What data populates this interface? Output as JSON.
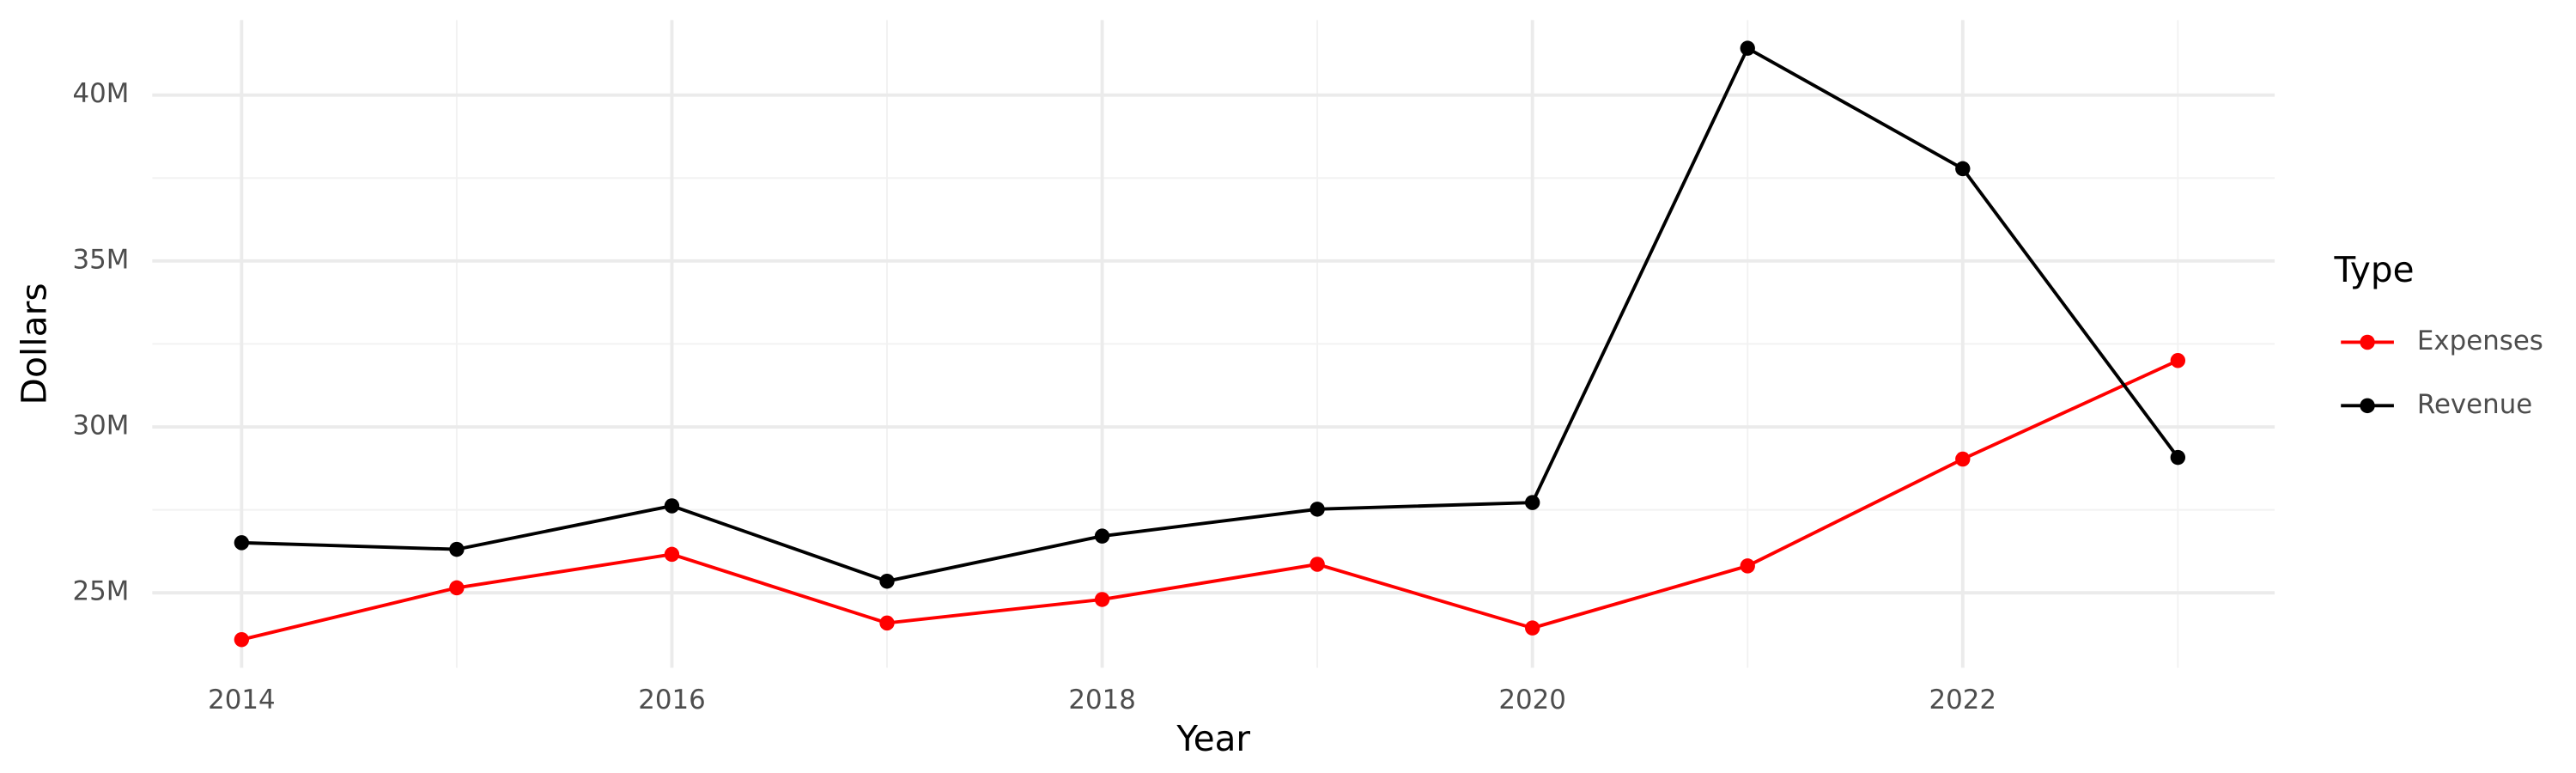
{
  "chart_data": {
    "type": "line",
    "x_label": "Year",
    "y_label": "Dollars",
    "legend_title": "Type",
    "x": [
      2014,
      2015,
      2016,
      2017,
      2018,
      2019,
      2020,
      2021,
      2022,
      2023
    ],
    "series": [
      {
        "name": "Expenses",
        "color": "#ff0000",
        "values": [
          23590000,
          25150000,
          26160000,
          24090000,
          24800000,
          25860000,
          23940000,
          25810000,
          29030000,
          32000000
        ]
      },
      {
        "name": "Revenue",
        "color": "#000000",
        "values": [
          26510000,
          26310000,
          27620000,
          25350000,
          26710000,
          27520000,
          27720000,
          41410000,
          37780000,
          29080000
        ]
      }
    ],
    "xlim": [
      2013.585,
      2023.45
    ],
    "xticks": [
      2014,
      2016,
      2018,
      2020,
      2022
    ],
    "ylim": [
      22740000,
      42260000
    ],
    "yticks": [
      {
        "value": 25000000,
        "label": "25M"
      },
      {
        "value": 30000000,
        "label": "30M"
      },
      {
        "value": 35000000,
        "label": "35M"
      },
      {
        "value": 40000000,
        "label": "40M"
      }
    ],
    "grid": true,
    "legend_position": "right"
  }
}
